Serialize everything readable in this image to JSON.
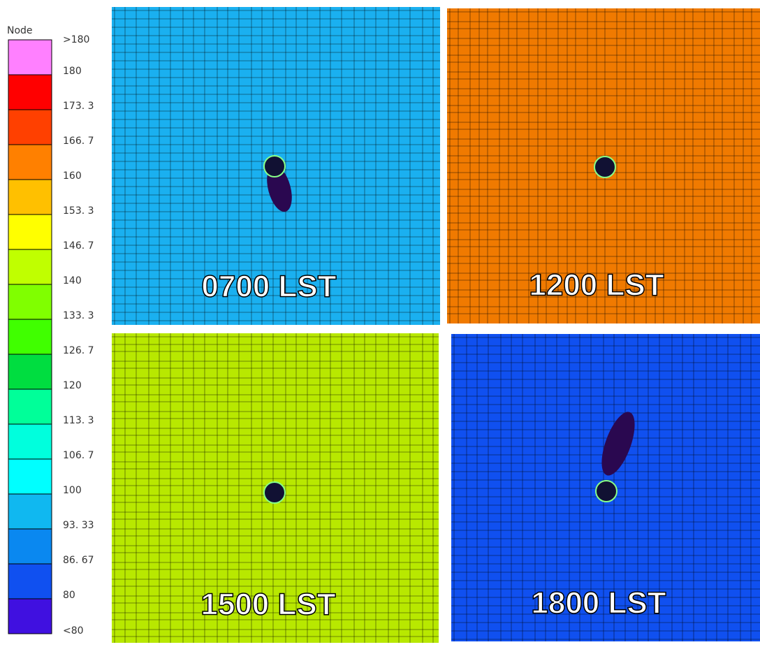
{
  "legend": {
    "title": "Node",
    "labels": [
      ">180",
      "180",
      "173. 3",
      "166. 7",
      "160",
      "153. 3",
      "146. 7",
      "140",
      "133. 3",
      "126. 7",
      "120",
      "113. 3",
      "106. 7",
      "100",
      "93. 33",
      "86. 67",
      "80",
      "<80"
    ],
    "colors": [
      "#ff80ff",
      "#ff0000",
      "#ff4000",
      "#ff8000",
      "#ffc000",
      "#ffff00",
      "#c0ff00",
      "#80ff00",
      "#40ff00",
      "#00dd40",
      "#00ff99",
      "#00ffdd",
      "#00ffff",
      "#10b8f0",
      "#0a88f0",
      "#1050f0",
      "#4010e0",
      "#200040"
    ]
  },
  "panels": [
    {
      "label": "0700 LST",
      "color": "#1ab0f0"
    },
    {
      "label": "1200 LST",
      "color": "#f07a00"
    },
    {
      "label": "1500 LST",
      "color": "#b8e800"
    },
    {
      "label": "1800 LST",
      "color": "#1050f0"
    }
  ]
}
